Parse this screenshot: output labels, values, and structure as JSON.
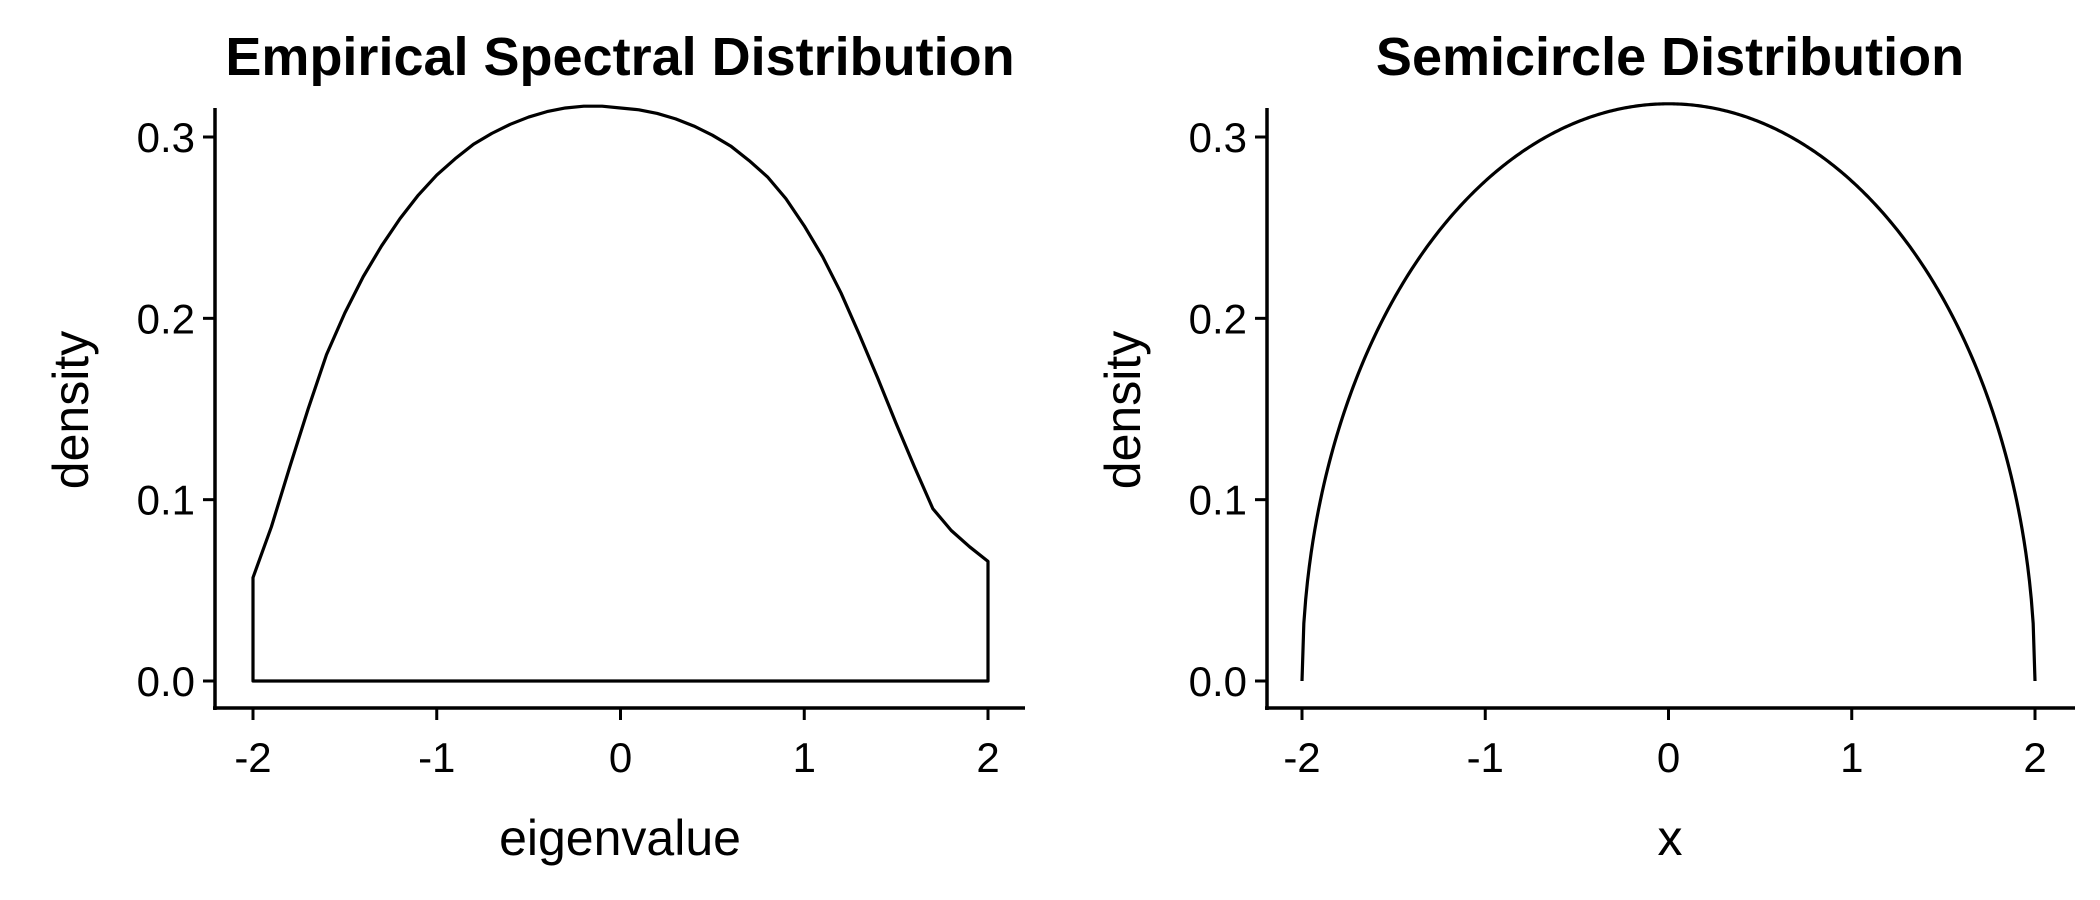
{
  "chart_data": [
    {
      "type": "area",
      "title": "Empirical Spectral Distribution",
      "xlabel": "eigenvalue",
      "ylabel": "density",
      "xlim": [
        -2.2,
        2.2
      ],
      "ylim": [
        -0.015,
        0.335
      ],
      "xticks": [
        -2,
        -1,
        0,
        1,
        2
      ],
      "xtick_labels": [
        "-2",
        "-1",
        "0",
        "1",
        "2"
      ],
      "yticks": [
        0.0,
        0.1,
        0.2,
        0.3
      ],
      "ytick_labels": [
        "0.0",
        "0.1",
        "0.2",
        "0.3"
      ],
      "grid": false,
      "baseline": 0,
      "series": [
        {
          "x": [
            -2.0,
            -1.9,
            -1.8,
            -1.7,
            -1.6,
            -1.5,
            -1.4,
            -1.3,
            -1.2,
            -1.1,
            -1.0,
            -0.9,
            -0.8,
            -0.7,
            -0.6,
            -0.5,
            -0.4,
            -0.3,
            -0.2,
            -0.1,
            0.0,
            0.1,
            0.2,
            0.3,
            0.4,
            0.5,
            0.6,
            0.7,
            0.8,
            0.9,
            1.0,
            1.1,
            1.2,
            1.3,
            1.4,
            1.5,
            1.6,
            1.7,
            1.8,
            1.9,
            2.0
          ],
          "y": [
            0.057,
            0.085,
            0.118,
            0.15,
            0.18,
            0.203,
            0.223,
            0.24,
            0.255,
            0.268,
            0.279,
            0.288,
            0.296,
            0.302,
            0.307,
            0.311,
            0.314,
            0.316,
            0.317,
            0.317,
            0.316,
            0.315,
            0.313,
            0.31,
            0.306,
            0.301,
            0.295,
            0.287,
            0.278,
            0.266,
            0.251,
            0.234,
            0.214,
            0.191,
            0.167,
            0.142,
            0.118,
            0.095,
            0.083,
            0.074,
            0.066
          ]
        }
      ]
    },
    {
      "type": "line",
      "title": "Semicircle Distribution",
      "xlabel": "x",
      "ylabel": "density",
      "xlim": [
        -2.2,
        2.2
      ],
      "ylim": [
        -0.015,
        0.335
      ],
      "xticks": [
        -2,
        -1,
        0,
        1,
        2
      ],
      "xtick_labels": [
        "-2",
        "-1",
        "0",
        "1",
        "2"
      ],
      "yticks": [
        0.0,
        0.1,
        0.2,
        0.3
      ],
      "ytick_labels": [
        "0.0",
        "0.1",
        "0.2",
        "0.3"
      ],
      "grid": false,
      "function": "sqrt(4 - x^2) / (2*pi)",
      "domain": [
        -2,
        2
      ]
    }
  ]
}
